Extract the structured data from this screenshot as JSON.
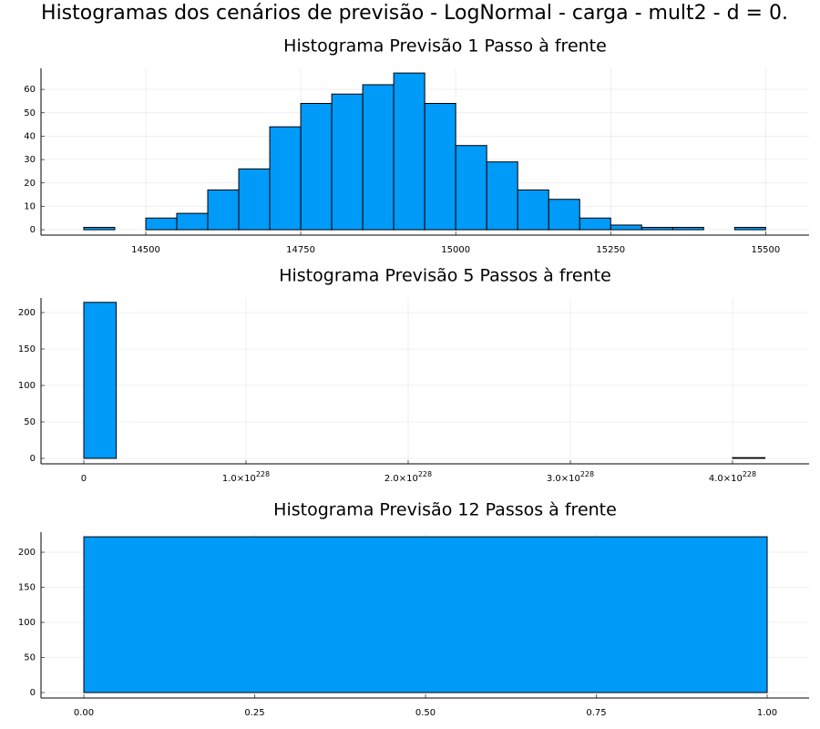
{
  "title": "Histogramas dos cenários de previsão - LogNormal - carga - mult2 - d = 0.",
  "chart_data": [
    {
      "type": "histogram",
      "title": "Histograma Previsão 1 Passo à frente",
      "color": "#009af9",
      "grid": true,
      "bins": [
        14400,
        14450,
        14500,
        14550,
        14600,
        14650,
        14700,
        14750,
        14800,
        14850,
        14900,
        14950,
        15000,
        15050,
        15100,
        15150,
        15200,
        15250,
        15300,
        15350,
        15400,
        15450,
        15500
      ],
      "counts": [
        1,
        0,
        5,
        7,
        17,
        26,
        44,
        54,
        58,
        62,
        67,
        54,
        36,
        29,
        17,
        13,
        5,
        2,
        1,
        1,
        0,
        1
      ],
      "xlim": [
        14331,
        15570
      ],
      "ylim": [
        -2.3,
        69
      ],
      "xticks": [
        14500,
        14750,
        15000,
        15250,
        15500
      ],
      "yticks": [
        0,
        10,
        20,
        30,
        40,
        50,
        60
      ]
    },
    {
      "type": "histogram",
      "title": "Histograma Previsão 5 Passos à frente",
      "color": "#009af9",
      "grid": true,
      "bins": [
        0,
        2e+227,
        4e+227,
        6e+227,
        8e+227,
        1e+228,
        1.2e+228,
        1.4e+228,
        1.6e+228,
        1.8e+228,
        2e+228,
        2.2e+228,
        2.4e+228,
        2.6e+228,
        2.8e+228,
        3e+228,
        3.2e+228,
        3.4e+228,
        3.6e+228,
        3.8e+228,
        4e+228,
        4.2e+228
      ],
      "counts": [
        214,
        0,
        0,
        0,
        0,
        0,
        0,
        0,
        0,
        0,
        0,
        0,
        0,
        0,
        0,
        0,
        0,
        0,
        0,
        0,
        1
      ],
      "xlim": [
        -2.64e+227,
        4.472e+228
      ],
      "ylim": [
        -7.5,
        220
      ],
      "xticks": [
        0,
        {
          "value": 1e+228,
          "label": "1.0×10",
          "exponent": "228"
        },
        {
          "value": 2e+228,
          "label": "2.0×10",
          "exponent": "228"
        },
        {
          "value": 3e+228,
          "label": "3.0×10",
          "exponent": "228"
        },
        {
          "value": 4e+228,
          "label": "4.0×10",
          "exponent": "228"
        }
      ],
      "yticks": [
        0,
        50,
        100,
        150,
        200
      ]
    },
    {
      "type": "histogram",
      "title": "Histograma Previsão 12 Passos à frente",
      "color": "#009af9",
      "grid": true,
      "bins": [
        0,
        1
      ],
      "counts": [
        222
      ],
      "xlim": [
        -0.0627,
        1.0613
      ],
      "ylim": [
        -7.8,
        228.6
      ],
      "xticks": [
        {
          "value": 0,
          "label": "0.00"
        },
        {
          "value": 0.25,
          "label": "0.25"
        },
        {
          "value": 0.5,
          "label": "0.50"
        },
        {
          "value": 0.75,
          "label": "0.75"
        },
        {
          "value": 1,
          "label": "1.00"
        }
      ],
      "yticks": [
        0,
        50,
        100,
        150,
        200
      ]
    }
  ]
}
